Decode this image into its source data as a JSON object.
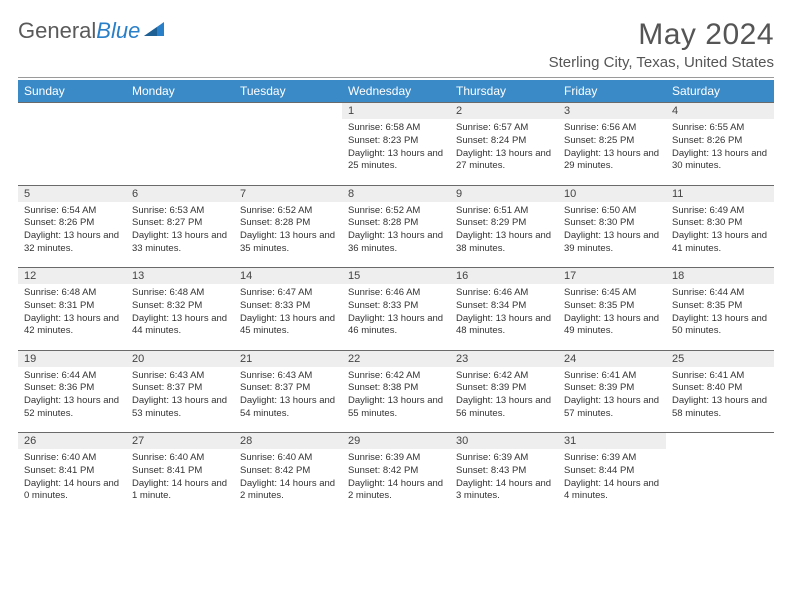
{
  "logo": {
    "general": "General",
    "blue": "Blue"
  },
  "title": "May 2024",
  "location": "Sterling City, Texas, United States",
  "colors": {
    "headerBg": "#3a8ac8",
    "headerText": "#ffffff",
    "dayNumBg": "#eeeeee",
    "rule": "#6a6a6a",
    "logoBlue": "#2a7fc9"
  },
  "dayHeaders": [
    "Sunday",
    "Monday",
    "Tuesday",
    "Wednesday",
    "Thursday",
    "Friday",
    "Saturday"
  ],
  "weeks": [
    [
      null,
      null,
      null,
      {
        "n": "1",
        "sr": "6:58 AM",
        "ss": "8:23 PM",
        "dl": "13 hours and 25 minutes."
      },
      {
        "n": "2",
        "sr": "6:57 AM",
        "ss": "8:24 PM",
        "dl": "13 hours and 27 minutes."
      },
      {
        "n": "3",
        "sr": "6:56 AM",
        "ss": "8:25 PM",
        "dl": "13 hours and 29 minutes."
      },
      {
        "n": "4",
        "sr": "6:55 AM",
        "ss": "8:26 PM",
        "dl": "13 hours and 30 minutes."
      }
    ],
    [
      {
        "n": "5",
        "sr": "6:54 AM",
        "ss": "8:26 PM",
        "dl": "13 hours and 32 minutes."
      },
      {
        "n": "6",
        "sr": "6:53 AM",
        "ss": "8:27 PM",
        "dl": "13 hours and 33 minutes."
      },
      {
        "n": "7",
        "sr": "6:52 AM",
        "ss": "8:28 PM",
        "dl": "13 hours and 35 minutes."
      },
      {
        "n": "8",
        "sr": "6:52 AM",
        "ss": "8:28 PM",
        "dl": "13 hours and 36 minutes."
      },
      {
        "n": "9",
        "sr": "6:51 AM",
        "ss": "8:29 PM",
        "dl": "13 hours and 38 minutes."
      },
      {
        "n": "10",
        "sr": "6:50 AM",
        "ss": "8:30 PM",
        "dl": "13 hours and 39 minutes."
      },
      {
        "n": "11",
        "sr": "6:49 AM",
        "ss": "8:30 PM",
        "dl": "13 hours and 41 minutes."
      }
    ],
    [
      {
        "n": "12",
        "sr": "6:48 AM",
        "ss": "8:31 PM",
        "dl": "13 hours and 42 minutes."
      },
      {
        "n": "13",
        "sr": "6:48 AM",
        "ss": "8:32 PM",
        "dl": "13 hours and 44 minutes."
      },
      {
        "n": "14",
        "sr": "6:47 AM",
        "ss": "8:33 PM",
        "dl": "13 hours and 45 minutes."
      },
      {
        "n": "15",
        "sr": "6:46 AM",
        "ss": "8:33 PM",
        "dl": "13 hours and 46 minutes."
      },
      {
        "n": "16",
        "sr": "6:46 AM",
        "ss": "8:34 PM",
        "dl": "13 hours and 48 minutes."
      },
      {
        "n": "17",
        "sr": "6:45 AM",
        "ss": "8:35 PM",
        "dl": "13 hours and 49 minutes."
      },
      {
        "n": "18",
        "sr": "6:44 AM",
        "ss": "8:35 PM",
        "dl": "13 hours and 50 minutes."
      }
    ],
    [
      {
        "n": "19",
        "sr": "6:44 AM",
        "ss": "8:36 PM",
        "dl": "13 hours and 52 minutes."
      },
      {
        "n": "20",
        "sr": "6:43 AM",
        "ss": "8:37 PM",
        "dl": "13 hours and 53 minutes."
      },
      {
        "n": "21",
        "sr": "6:43 AM",
        "ss": "8:37 PM",
        "dl": "13 hours and 54 minutes."
      },
      {
        "n": "22",
        "sr": "6:42 AM",
        "ss": "8:38 PM",
        "dl": "13 hours and 55 minutes."
      },
      {
        "n": "23",
        "sr": "6:42 AM",
        "ss": "8:39 PM",
        "dl": "13 hours and 56 minutes."
      },
      {
        "n": "24",
        "sr": "6:41 AM",
        "ss": "8:39 PM",
        "dl": "13 hours and 57 minutes."
      },
      {
        "n": "25",
        "sr": "6:41 AM",
        "ss": "8:40 PM",
        "dl": "13 hours and 58 minutes."
      }
    ],
    [
      {
        "n": "26",
        "sr": "6:40 AM",
        "ss": "8:41 PM",
        "dl": "14 hours and 0 minutes."
      },
      {
        "n": "27",
        "sr": "6:40 AM",
        "ss": "8:41 PM",
        "dl": "14 hours and 1 minute."
      },
      {
        "n": "28",
        "sr": "6:40 AM",
        "ss": "8:42 PM",
        "dl": "14 hours and 2 minutes."
      },
      {
        "n": "29",
        "sr": "6:39 AM",
        "ss": "8:42 PM",
        "dl": "14 hours and 2 minutes."
      },
      {
        "n": "30",
        "sr": "6:39 AM",
        "ss": "8:43 PM",
        "dl": "14 hours and 3 minutes."
      },
      {
        "n": "31",
        "sr": "6:39 AM",
        "ss": "8:44 PM",
        "dl": "14 hours and 4 minutes."
      },
      null
    ]
  ],
  "labels": {
    "sunrise": "Sunrise: ",
    "sunset": "Sunset: ",
    "daylight": "Daylight: "
  }
}
